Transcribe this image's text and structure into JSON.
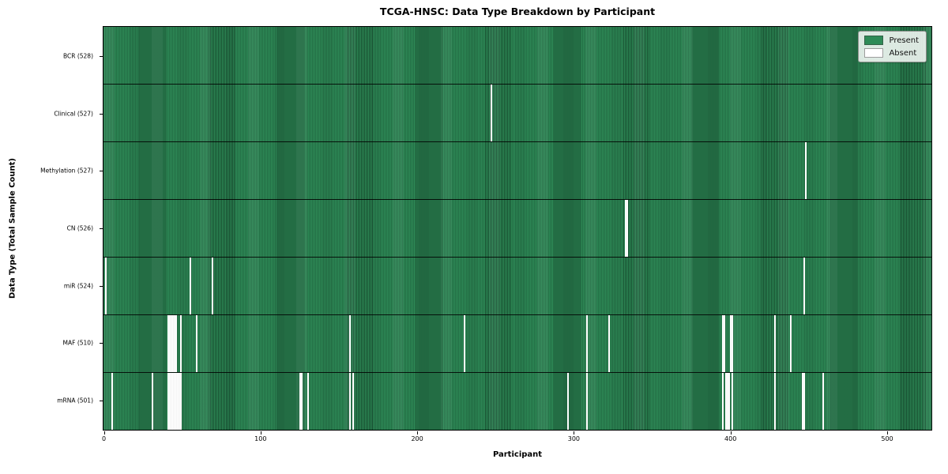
{
  "title": "TCGA-HNSC: Data Type Breakdown by Participant",
  "axes": {
    "xlabel": "Participant",
    "ylabel": "Data Type (Total Sample Count)",
    "x_ticks": [
      0,
      100,
      200,
      300,
      400,
      500
    ]
  },
  "legend": {
    "items": [
      {
        "label": "Present",
        "color": "#2e8b57"
      },
      {
        "label": "Absent",
        "color": "#ffffff"
      }
    ]
  },
  "colors": {
    "present": "#2e8b57",
    "absent": "#ffffff",
    "cell_edge": "rgba(5,30,18,0.55)",
    "row_divider": "#000000"
  },
  "chart_data": {
    "type": "heatmap",
    "title": "TCGA-HNSC: Data Type Breakdown by Participant",
    "xlabel": "Participant",
    "ylabel": "Data Type (Total Sample Count)",
    "legend_entries": [
      "Present",
      "Absent"
    ],
    "legend_position": "upper right",
    "n_participants": 528,
    "x_range": [
      0,
      528
    ],
    "x_tick_values": [
      0,
      100,
      200,
      300,
      400,
      500
    ],
    "value_encoding": {
      "present": 1,
      "absent": 0
    },
    "rows": [
      {
        "data_type": "BCR",
        "total": 528,
        "label": "BCR (528)",
        "absent_participants": []
      },
      {
        "data_type": "Clinical",
        "total": 527,
        "label": "Clinical (527)",
        "absent_participants": [
          247
        ]
      },
      {
        "data_type": "Methylation",
        "total": 527,
        "label": "Methylation (527)",
        "absent_participants": [
          448
        ]
      },
      {
        "data_type": "CN",
        "total": 526,
        "label": "CN (526)",
        "absent_participants": [
          333,
          334
        ]
      },
      {
        "data_type": "miR",
        "total": 524,
        "label": "miR (524)",
        "absent_participants": [
          1,
          55,
          69,
          447
        ]
      },
      {
        "data_type": "MAF",
        "total": 510,
        "label": "MAF (510)",
        "absent_participants": [
          41,
          42,
          43,
          44,
          45,
          46,
          49,
          59,
          157,
          230,
          308,
          322,
          395,
          396,
          400,
          401,
          428,
          438
        ]
      },
      {
        "data_type": "mRNA",
        "total": 501,
        "label": "mRNA (501)",
        "absent_participants": [
          5,
          31,
          41,
          42,
          43,
          44,
          45,
          46,
          47,
          48,
          49,
          125,
          126,
          130,
          157,
          159,
          296,
          308,
          395,
          397,
          398,
          399,
          401,
          428,
          446,
          447,
          459
        ]
      }
    ]
  }
}
